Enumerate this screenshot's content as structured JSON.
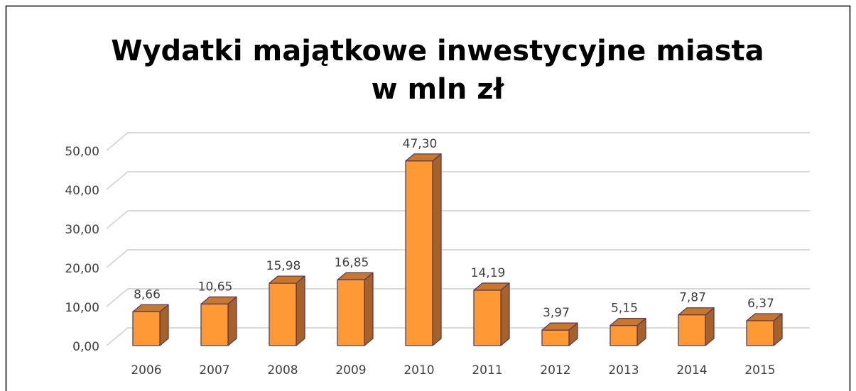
{
  "chart_data": {
    "type": "bar3d",
    "title": [
      "Wydatki majątkowe inwestycyjne miasta",
      "w mln zł"
    ],
    "categories": [
      "2006",
      "2007",
      "2008",
      "2009",
      "2010",
      "2011",
      "2012",
      "2013",
      "2014",
      "2015"
    ],
    "values": [
      8.66,
      10.65,
      15.98,
      16.85,
      47.3,
      14.19,
      3.97,
      5.15,
      7.87,
      6.37
    ],
    "value_labels": [
      "8,66",
      "10,65",
      "15,98",
      "16,85",
      "47,30",
      "14,19",
      "3,97",
      "5,15",
      "7,87",
      "6,37"
    ],
    "color": "#ff9933",
    "ylim": [
      0,
      50
    ],
    "yticks": [
      {
        "value": 0,
        "label": "0,00"
      },
      {
        "value": 10,
        "label": "10,00"
      },
      {
        "value": 20,
        "label": "20,00"
      },
      {
        "value": 30,
        "label": "30,00"
      },
      {
        "value": 40,
        "label": "40,00"
      },
      {
        "value": 50,
        "label": "50,00"
      }
    ],
    "grid": true
  }
}
